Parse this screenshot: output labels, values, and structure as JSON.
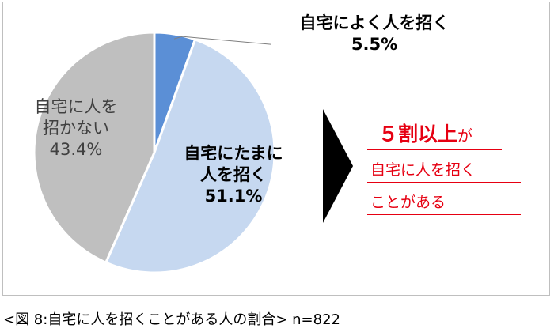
{
  "chart_data": {
    "type": "pie",
    "slices": [
      {
        "label_lines": [
          "自宅によく人を招く",
          "5.5%"
        ],
        "value": 5.5,
        "color": "#5b8fd6"
      },
      {
        "label_lines": [
          "自宅にたまに",
          "人を招く",
          "51.1%"
        ],
        "value": 51.1,
        "color": "#c6d8f0"
      },
      {
        "label_lines": [
          "自宅に人を",
          "招かない",
          "43.4%"
        ],
        "value": 43.4,
        "color": "#bfbfbf"
      }
    ],
    "start": "12 o'clock",
    "direction": "clockwise"
  },
  "callout": {
    "line1_main": "５割以上",
    "line1_suffix": "が",
    "line2": "自宅に人を招く",
    "line3": "ことがある",
    "color": "#e60012"
  },
  "caption": "<図 8:自宅に人を招くことがある人の割合> n=822"
}
